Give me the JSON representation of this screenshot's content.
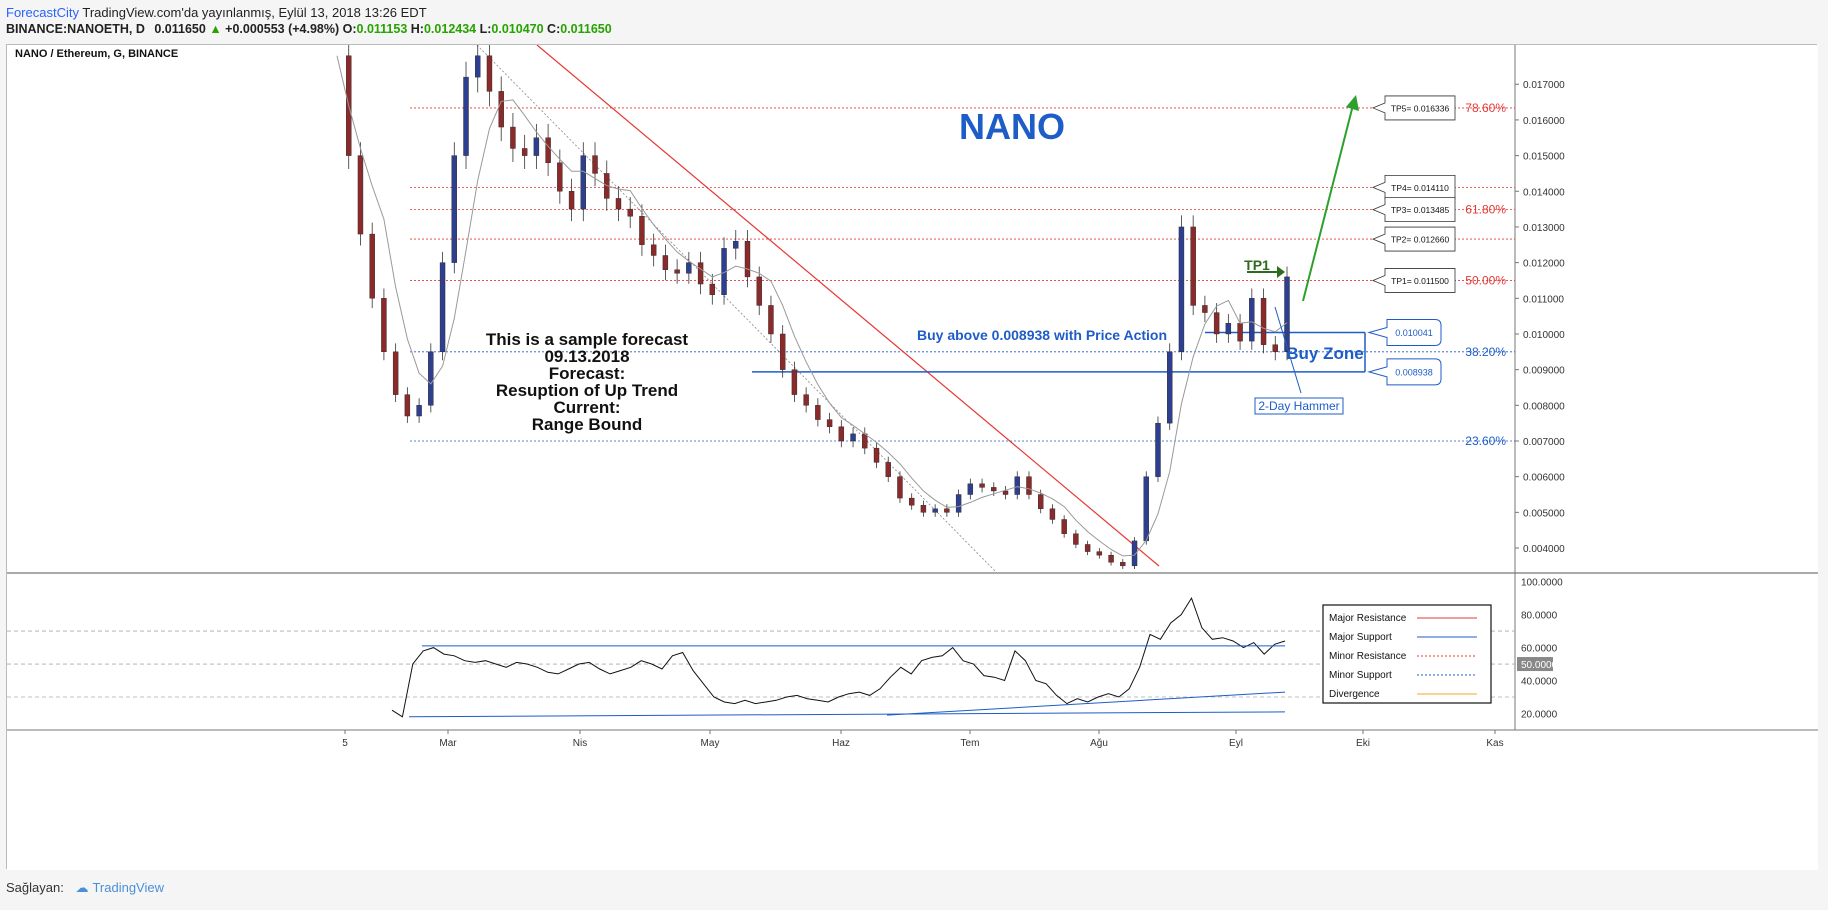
{
  "header": {
    "brand": "ForecastCity",
    "published": "TradingView.com'da yayınlanmış, Eylül 13, 2018 13:26 EDT",
    "symbol": "BINANCE:NANOETH, D",
    "last": "0.011650",
    "change_arrow": "▲",
    "change": "+0.000553 (+4.98%)",
    "open_label": "O:",
    "open": "0.011153",
    "high_label": "H:",
    "high": "0.012434",
    "low_label": "L:",
    "low": "0.010470",
    "close_label": "C:",
    "close": "0.011650"
  },
  "footer": {
    "label": "Sağlayan:",
    "provider": "TradingView"
  },
  "chart_data": [
    {
      "type": "candlestick",
      "title": "NANO / Ethereum, G, BINANCE",
      "watermark": "NANO",
      "x_tick_labels": [
        "5",
        "Mar",
        "Nis",
        "May",
        "Haz",
        "Tem",
        "Ağu",
        "Eyl",
        "Eki",
        "Kas"
      ],
      "y_tick_labels": [
        "0.017000",
        "0.016000",
        "0.015000",
        "0.014000",
        "0.013000",
        "0.012000",
        "0.011000",
        "0.010000",
        "0.009000",
        "0.008000",
        "0.007000",
        "0.006000",
        "0.005000",
        "0.004000"
      ],
      "ylim": [
        0.0033,
        0.0181
      ],
      "colors": {
        "up": "#2f3f8f",
        "down": "#8b2a2a",
        "resistance": "#e53935",
        "support": "#1e5cc8",
        "target_arrow": "#2ca02c",
        "tp1": "#2e6b1f"
      },
      "series": [
        {
          "name": "price_path",
          "values": [
            0.0178,
            0.015,
            0.0128,
            0.011,
            0.0095,
            0.0083,
            0.0077,
            0.008,
            0.0095,
            0.012,
            0.015,
            0.0172,
            0.0178,
            0.0168,
            0.0158,
            0.0152,
            0.015,
            0.0155,
            0.0148,
            0.014,
            0.0135,
            0.015,
            0.0145,
            0.0138,
            0.0135,
            0.0133,
            0.0125,
            0.0122,
            0.0118,
            0.0117,
            0.012,
            0.0114,
            0.0111,
            0.0124,
            0.0126,
            0.0116,
            0.0108,
            0.01,
            0.009,
            0.0083,
            0.008,
            0.0076,
            0.0074,
            0.007,
            0.0072,
            0.0068,
            0.0064,
            0.006,
            0.0054,
            0.0052,
            0.005,
            0.0051,
            0.005,
            0.0055,
            0.0058,
            0.0057,
            0.0056,
            0.0055,
            0.006,
            0.0055,
            0.0051,
            0.0048,
            0.0044,
            0.0041,
            0.0039,
            0.0038,
            0.0036,
            0.0035,
            0.0042,
            0.006,
            0.0075,
            0.0095,
            0.013,
            0.0108,
            0.0106,
            0.01,
            0.0103,
            0.0098,
            0.011,
            0.0097,
            0.0095,
            0.0116
          ]
        }
      ],
      "levels": [
        {
          "label": "TP5= 0.016336",
          "value": 0.016336,
          "fib": "78.60%",
          "style": "red-dotted"
        },
        {
          "label": "TP4= 0.014110",
          "value": 0.01411,
          "fib": "",
          "style": "red-dotted"
        },
        {
          "label": "TP3= 0.013485",
          "value": 0.013485,
          "fib": "61.80%",
          "style": "red-dotted"
        },
        {
          "label": "TP2= 0.012660",
          "value": 0.01266,
          "fib": "",
          "style": "red-dotted"
        },
        {
          "label": "TP1= 0.011500",
          "value": 0.0115,
          "fib": "50.00%",
          "style": "red-dotted"
        },
        {
          "label": "",
          "value": 0.0095,
          "fib": "38.20%",
          "style": "blue-dotted"
        },
        {
          "label": "",
          "value": 0.007,
          "fib": "23.60%",
          "style": "blue-dotted"
        }
      ],
      "buy_zone": {
        "upper_label": "0.010041",
        "upper": 0.010041,
        "lower_label": "0.008938",
        "lower": 0.008938,
        "title": "Buy Zone"
      },
      "annotations": {
        "buy_note": "Buy above 0.008938 with Price Action",
        "forecast_lines": [
          "This is a sample forecast",
          "09.13.2018",
          "Forecast:",
          "Resuption of Up Trend",
          "Current:",
          "Range Bound"
        ],
        "tp1": "TP1",
        "hammer": "2-Day Hammer"
      }
    },
    {
      "type": "line",
      "title": "",
      "y_tick_labels": [
        "100.0000",
        "80.0000",
        "60.0000",
        "50.0000",
        "40.0000",
        "20.0000"
      ],
      "ylim": [
        10,
        104
      ],
      "guides": [
        70,
        50,
        30
      ],
      "series": [
        {
          "name": "oscillator",
          "values": [
            22,
            18,
            50,
            58,
            60,
            56,
            55,
            52,
            51,
            52,
            50,
            48,
            51,
            50,
            48,
            45,
            44,
            47,
            50,
            51,
            47,
            44,
            46,
            48,
            52,
            50,
            47,
            55,
            57,
            46,
            38,
            30,
            27,
            26,
            28,
            26,
            27,
            28,
            30,
            31,
            29,
            28,
            27,
            30,
            32,
            33,
            31,
            35,
            42,
            48,
            44,
            52,
            54,
            55,
            60,
            52,
            50,
            43,
            42,
            40,
            58,
            52,
            40,
            38,
            31,
            26,
            29,
            27,
            30,
            32,
            30,
            35,
            48,
            68,
            65,
            75,
            80,
            90,
            72,
            65,
            66,
            64,
            60,
            63,
            56,
            62,
            64
          ]
        }
      ],
      "legend": [
        {
          "name": "Major Resistance",
          "color": "#e53935",
          "dash": "solid"
        },
        {
          "name": "Major Support",
          "color": "#1e5cc8",
          "dash": "solid"
        },
        {
          "name": "Minor Resistance",
          "color": "#e53935",
          "dash": "dotted"
        },
        {
          "name": "Minor Support",
          "color": "#1e5cc8",
          "dash": "dotted"
        },
        {
          "name": "Divergence",
          "color": "#f5a623",
          "dash": "solid"
        }
      ]
    }
  ]
}
